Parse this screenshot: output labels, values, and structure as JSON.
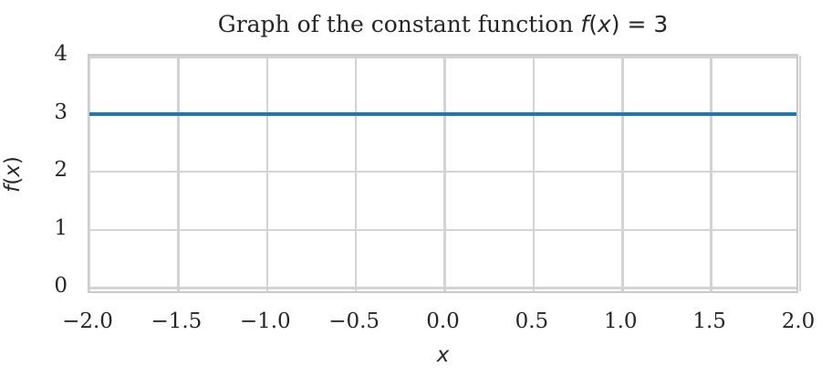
{
  "figure": {
    "background_color": "#ffffff",
    "text_color": "#262626",
    "title": {
      "full_text": "Graph of the constant function f(x) = 3",
      "prefix": "Graph of the constant function ",
      "math_f": "f",
      "open_paren": "(",
      "math_x": "x",
      "close_paren": ")",
      "equals": " = ",
      "value": "3"
    },
    "xlabel": "x",
    "ylabel": {
      "full_text": "f(x)",
      "math_f": "f",
      "open_paren": "(",
      "math_x": "x",
      "close_paren": ")"
    }
  },
  "chart_data": {
    "type": "line",
    "title": "Graph of the constant function f(x) = 3",
    "xlabel": "x",
    "ylabel": "f(x)",
    "series": [
      {
        "name": "f(x) = 3",
        "x": [
          -2.0,
          2.0
        ],
        "y": [
          3,
          3
        ],
        "color": "#1f77b4"
      }
    ],
    "constant_value": 3,
    "xlim": [
      -2.0,
      2.0
    ],
    "ylim": [
      -0.12,
      4.0
    ],
    "xticks": {
      "values": [
        -2.0,
        -1.5,
        -1.0,
        -0.5,
        0.0,
        0.5,
        1.0,
        1.5,
        2.0
      ],
      "labels": [
        "−2.0",
        "−1.5",
        "−1.0",
        "−0.5",
        "0.0",
        "0.5",
        "1.0",
        "1.5",
        "2.0"
      ]
    },
    "yticks": {
      "values": [
        0,
        1,
        2,
        3,
        4
      ],
      "labels": [
        "0",
        "1",
        "2",
        "3",
        "4"
      ]
    },
    "grid": true,
    "grid_color": "#d3d3d3",
    "spine_color": "#c9c9c9",
    "line_color": "#1f77b4",
    "text_color": "#262626",
    "legend": null
  }
}
